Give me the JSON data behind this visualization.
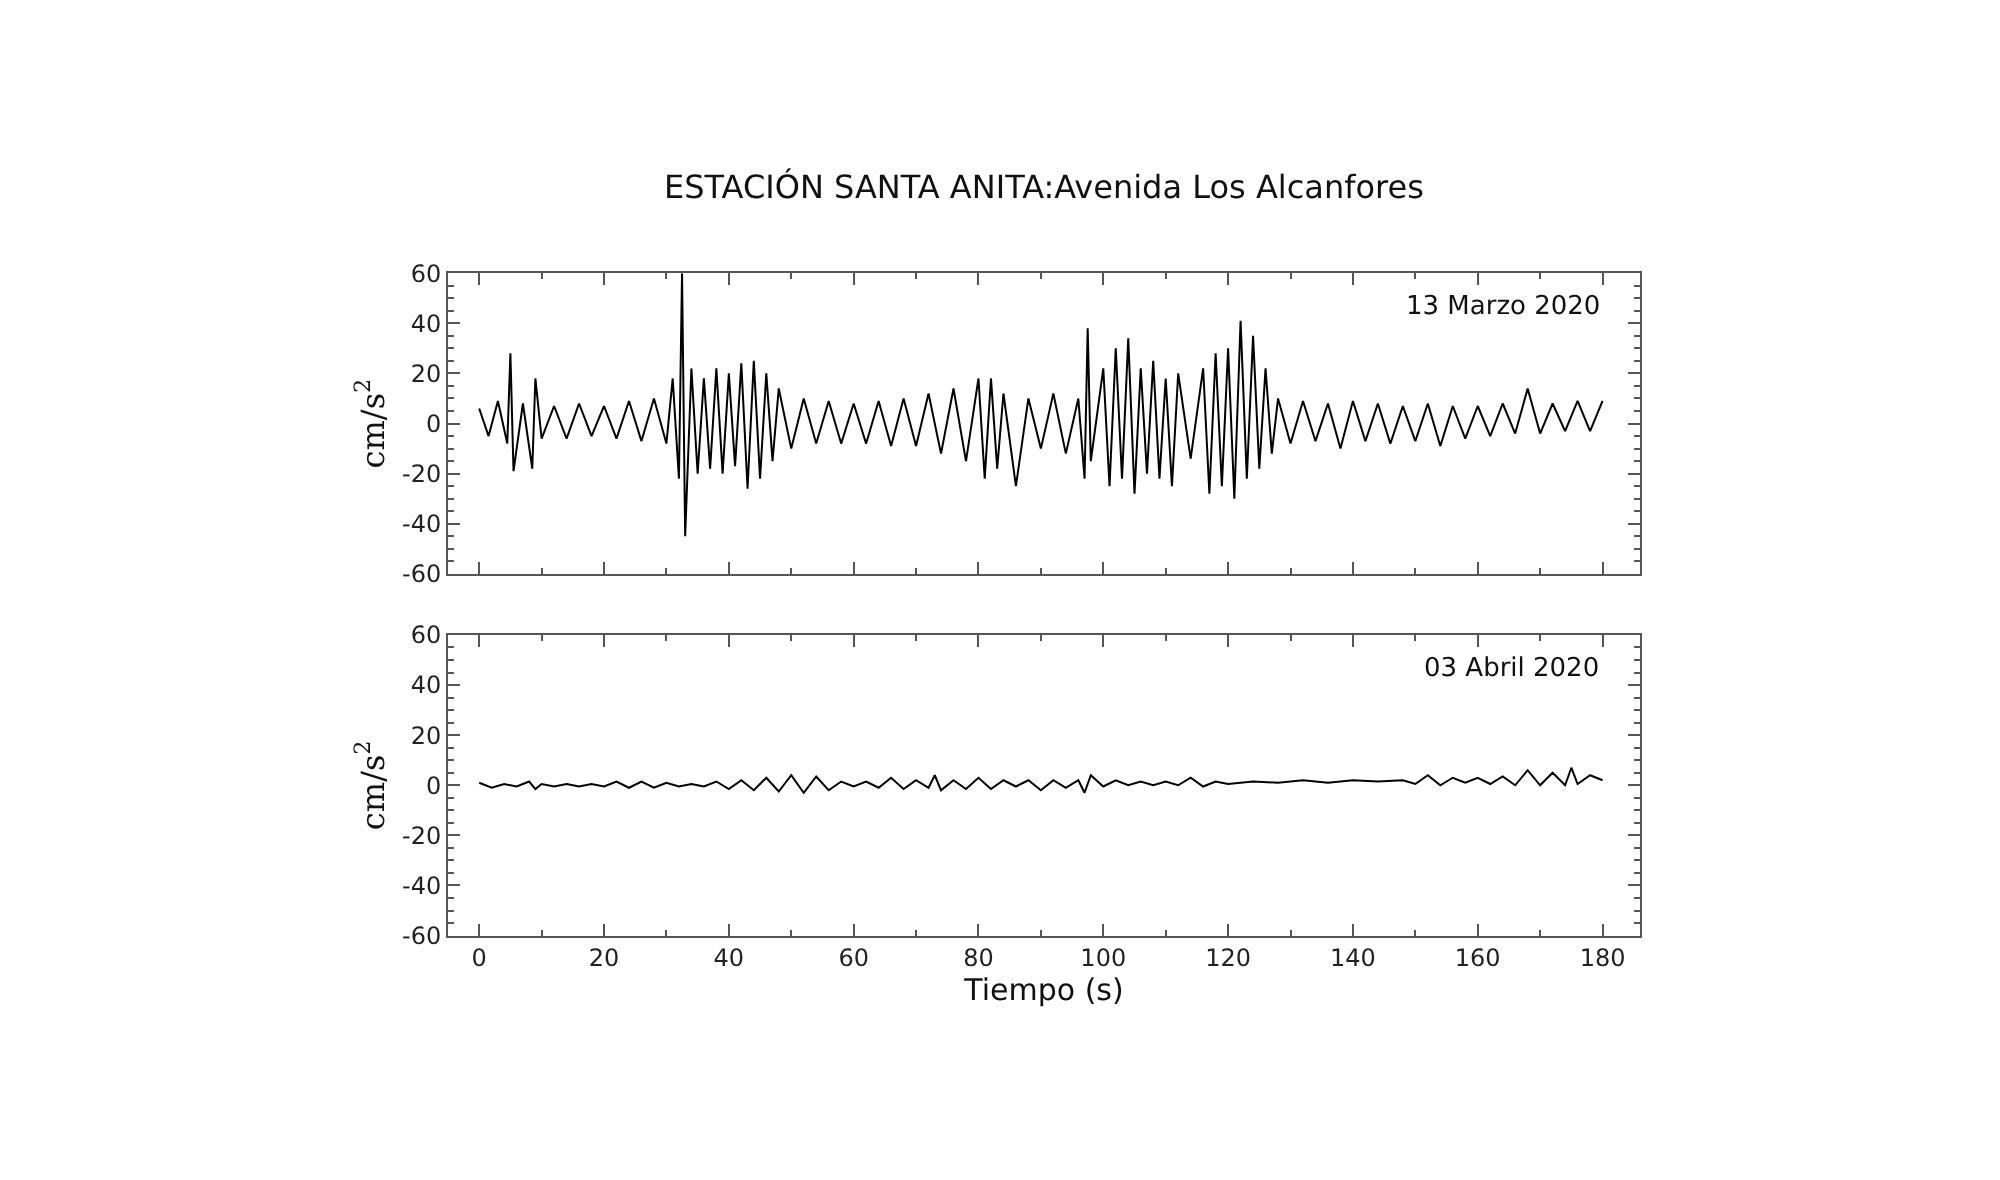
{
  "chart_data": [
    {
      "type": "line",
      "title": "ESTACIÓN SANTA ANITA:Avenida Los Alcanfores",
      "ylabel": "cm/s$^{2}$",
      "annotations": [
        "13 Marzo 2020"
      ],
      "xlim": [
        -5,
        186
      ],
      "ylim": [
        -60,
        60
      ],
      "xticks": [
        0,
        20,
        40,
        60,
        80,
        100,
        120,
        140,
        160,
        180
      ],
      "yticks": [
        -60,
        -40,
        -20,
        0,
        20,
        40,
        60
      ],
      "tick_labels": "y",
      "marker": "none",
      "line_style": "solid",
      "series": [
        {
          "color": "#000000",
          "x": [
            0,
            1.5,
            3,
            4.5,
            5,
            5.5,
            7,
            8.5,
            9,
            10,
            12,
            14,
            16,
            18,
            20,
            22,
            24,
            26,
            28,
            30,
            31,
            32,
            32.5,
            33,
            34,
            35,
            36,
            37,
            38,
            39,
            40,
            41,
            42,
            43,
            44,
            45,
            46,
            47,
            48,
            50,
            52,
            54,
            56,
            58,
            60,
            62,
            64,
            66,
            68,
            70,
            72,
            74,
            76,
            78,
            80,
            81,
            82,
            83,
            84,
            86,
            88,
            90,
            92,
            94,
            96,
            97,
            97.5,
            98,
            100,
            101,
            102,
            103,
            104,
            105,
            106,
            107,
            108,
            109,
            110,
            111,
            112,
            114,
            116,
            117,
            118,
            119,
            120,
            121,
            122,
            123,
            124,
            125,
            126,
            127,
            128,
            130,
            132,
            134,
            136,
            138,
            140,
            142,
            144,
            146,
            148,
            150,
            152,
            154,
            156,
            158,
            160,
            162,
            164,
            166,
            168,
            170,
            172,
            174,
            176,
            178,
            180
          ],
          "values": [
            6,
            -5,
            9,
            -8,
            28,
            -19,
            8,
            -18,
            18,
            -6,
            7,
            -6,
            8,
            -5,
            7,
            -6,
            9,
            -7,
            10,
            -8,
            18,
            -22,
            60,
            -45,
            22,
            -20,
            18,
            -18,
            22,
            -20,
            20,
            -17,
            24,
            -26,
            25,
            -22,
            20,
            -15,
            14,
            -10,
            10,
            -8,
            9,
            -8,
            8,
            -8,
            9,
            -9,
            10,
            -9,
            12,
            -12,
            14,
            -15,
            18,
            -22,
            18,
            -18,
            12,
            -25,
            10,
            -10,
            12,
            -12,
            10,
            -22,
            38,
            -15,
            22,
            -25,
            30,
            -22,
            34,
            -28,
            22,
            -20,
            25,
            -22,
            18,
            -25,
            20,
            -14,
            22,
            -28,
            28,
            -25,
            30,
            -30,
            41,
            -22,
            35,
            -18,
            22,
            -12,
            10,
            -8,
            9,
            -7,
            8,
            -10,
            9,
            -7,
            8,
            -8,
            7,
            -7,
            8,
            -9,
            7,
            -6,
            7,
            -5,
            8,
            -4,
            14,
            -4,
            8,
            -3,
            9,
            -3,
            9
          ]
        }
      ]
    },
    {
      "type": "line",
      "xlabel": "Tiempo (s)",
      "ylabel": "cm/s$^{2}$",
      "annotations": [
        "03 Abril 2020"
      ],
      "xlim": [
        -5,
        186
      ],
      "ylim": [
        -60,
        60
      ],
      "xticks": [
        0,
        20,
        40,
        60,
        80,
        100,
        120,
        140,
        160,
        180
      ],
      "yticks": [
        -60,
        -40,
        -20,
        0,
        20,
        40,
        60
      ],
      "marker": "none",
      "line_style": "solid",
      "series": [
        {
          "color": "#000000",
          "x": [
            0,
            2,
            4,
            6,
            8,
            9,
            10,
            12,
            14,
            16,
            18,
            20,
            22,
            24,
            26,
            28,
            30,
            32,
            34,
            36,
            38,
            40,
            42,
            44,
            46,
            48,
            50,
            52,
            54,
            56,
            58,
            60,
            62,
            64,
            66,
            68,
            70,
            72,
            73,
            74,
            76,
            78,
            80,
            82,
            84,
            86,
            88,
            90,
            92,
            94,
            96,
            97,
            98,
            100,
            102,
            104,
            106,
            108,
            110,
            112,
            114,
            116,
            118,
            120,
            124,
            128,
            132,
            136,
            140,
            144,
            148,
            150,
            152,
            154,
            156,
            158,
            160,
            162,
            164,
            166,
            168,
            170,
            172,
            174,
            175,
            176,
            178,
            180
          ],
          "values": [
            1,
            -1,
            0.5,
            -0.5,
            1.5,
            -1.5,
            0.5,
            -0.5,
            0.5,
            -0.5,
            0.5,
            -0.5,
            1.5,
            -1,
            1.5,
            -1,
            1,
            -0.5,
            0.5,
            -0.5,
            1.5,
            -1.5,
            2,
            -2,
            3,
            -2.5,
            4,
            -3,
            3.5,
            -2,
            1.5,
            -0.5,
            1.5,
            -1,
            3,
            -1.5,
            2,
            -1,
            4,
            -2,
            2,
            -1.5,
            3,
            -1.5,
            2,
            -0.5,
            2,
            -2,
            2,
            -1,
            2,
            -3,
            4,
            -0.5,
            2,
            0,
            1.5,
            0,
            1.5,
            0,
            3,
            -0.5,
            1.5,
            0.5,
            1.5,
            1,
            2,
            1,
            2,
            1.5,
            2,
            0.5,
            4,
            0,
            3,
            1,
            3,
            0.5,
            3.5,
            0,
            6,
            0,
            5,
            0,
            7,
            0.5,
            4,
            2
          ]
        }
      ]
    }
  ]
}
